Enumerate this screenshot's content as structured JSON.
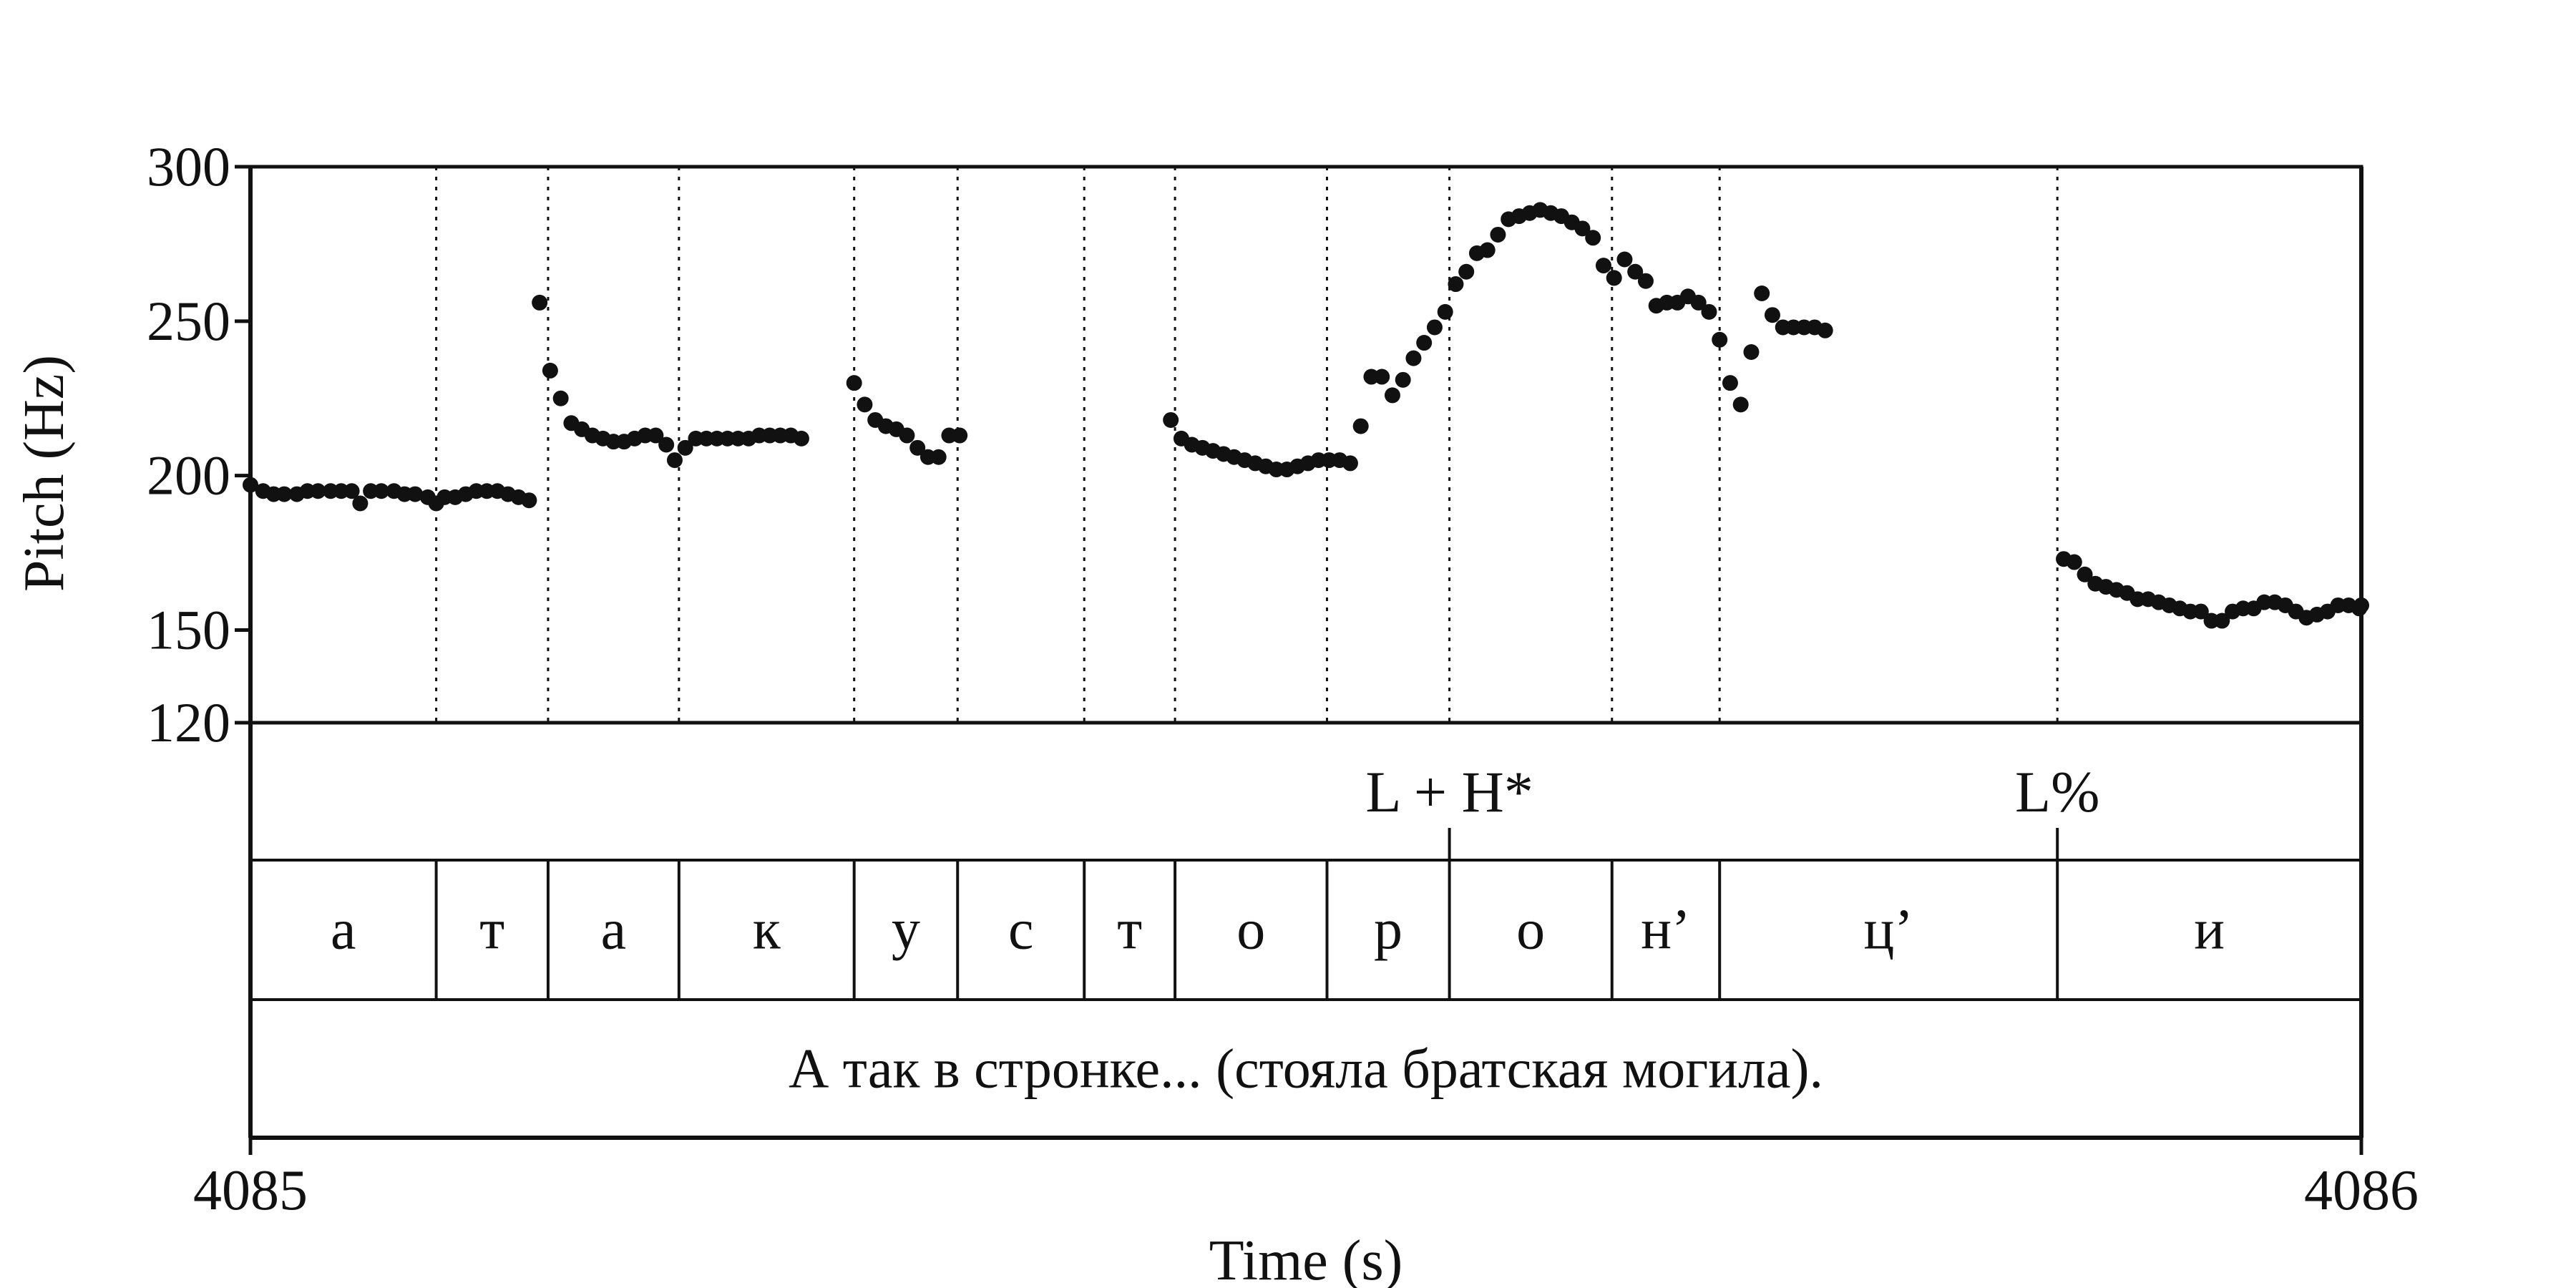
{
  "chart_data": {
    "type": "scatter",
    "title": "",
    "xlabel": "Time (s)",
    "ylabel": "Pitch (Hz)",
    "xlim": [
      4085,
      4086
    ],
    "ylim": [
      120,
      300
    ],
    "xticks": [
      "4085",
      "4086"
    ],
    "yticks": [
      {
        "value": 300,
        "label": "300"
      },
      {
        "value": 250,
        "label": "250"
      },
      {
        "value": 200,
        "label": "200"
      },
      {
        "value": 150,
        "label": "150"
      },
      {
        "value": 120,
        "label": "120"
      }
    ],
    "grid": false,
    "series": [
      {
        "color": "#111111",
        "points": [
          [
            4085.0,
            197
          ],
          [
            4085.006,
            195
          ],
          [
            4085.011,
            194
          ],
          [
            4085.016,
            194
          ],
          [
            4085.022,
            194
          ],
          [
            4085.027,
            195
          ],
          [
            4085.032,
            195
          ],
          [
            4085.038,
            195
          ],
          [
            4085.043,
            195
          ],
          [
            4085.048,
            195
          ],
          [
            4085.052,
            191
          ],
          [
            4085.057,
            195
          ],
          [
            4085.062,
            195
          ],
          [
            4085.068,
            195
          ],
          [
            4085.073,
            194
          ],
          [
            4085.078,
            194
          ],
          [
            4085.084,
            193
          ],
          [
            4085.088,
            191
          ],
          [
            4085.092,
            193
          ],
          [
            4085.097,
            193
          ],
          [
            4085.102,
            194
          ],
          [
            4085.107,
            195
          ],
          [
            4085.112,
            195
          ],
          [
            4085.117,
            195
          ],
          [
            4085.122,
            194
          ],
          [
            4085.127,
            193
          ],
          [
            4085.132,
            192
          ],
          [
            4085.137,
            256
          ],
          [
            4085.142,
            234
          ],
          [
            4085.147,
            225
          ],
          [
            4085.152,
            217
          ],
          [
            4085.157,
            215
          ],
          [
            4085.162,
            213
          ],
          [
            4085.167,
            212
          ],
          [
            4085.172,
            211
          ],
          [
            4085.177,
            211
          ],
          [
            4085.182,
            212
          ],
          [
            4085.187,
            213
          ],
          [
            4085.192,
            213
          ],
          [
            4085.197,
            210
          ],
          [
            4085.201,
            205
          ],
          [
            4085.206,
            209
          ],
          [
            4085.211,
            212
          ],
          [
            4085.216,
            212
          ],
          [
            4085.221,
            212
          ],
          [
            4085.226,
            212
          ],
          [
            4085.231,
            212
          ],
          [
            4085.236,
            212
          ],
          [
            4085.241,
            213
          ],
          [
            4085.246,
            213
          ],
          [
            4085.251,
            213
          ],
          [
            4085.256,
            213
          ],
          [
            4085.261,
            212
          ],
          [
            4085.286,
            230
          ],
          [
            4085.291,
            223
          ],
          [
            4085.296,
            218
          ],
          [
            4085.301,
            216
          ],
          [
            4085.306,
            215
          ],
          [
            4085.311,
            213
          ],
          [
            4085.316,
            209
          ],
          [
            4085.321,
            206
          ],
          [
            4085.326,
            206
          ],
          [
            4085.331,
            213
          ],
          [
            4085.336,
            213
          ],
          [
            4085.436,
            218
          ],
          [
            4085.441,
            212
          ],
          [
            4085.446,
            210
          ],
          [
            4085.451,
            209
          ],
          [
            4085.456,
            208
          ],
          [
            4085.461,
            207
          ],
          [
            4085.466,
            206
          ],
          [
            4085.471,
            205
          ],
          [
            4085.476,
            204
          ],
          [
            4085.481,
            203
          ],
          [
            4085.486,
            202
          ],
          [
            4085.491,
            202
          ],
          [
            4085.496,
            203
          ],
          [
            4085.501,
            204
          ],
          [
            4085.506,
            205
          ],
          [
            4085.511,
            205
          ],
          [
            4085.516,
            205
          ],
          [
            4085.521,
            204
          ],
          [
            4085.526,
            216
          ],
          [
            4085.531,
            232
          ],
          [
            4085.536,
            232
          ],
          [
            4085.541,
            226
          ],
          [
            4085.546,
            231
          ],
          [
            4085.551,
            238
          ],
          [
            4085.556,
            243
          ],
          [
            4085.561,
            248
          ],
          [
            4085.566,
            253
          ],
          [
            4085.571,
            262
          ],
          [
            4085.576,
            266
          ],
          [
            4085.581,
            272
          ],
          [
            4085.586,
            273
          ],
          [
            4085.591,
            278
          ],
          [
            4085.596,
            283
          ],
          [
            4085.601,
            284
          ],
          [
            4085.606,
            285
          ],
          [
            4085.611,
            286
          ],
          [
            4085.616,
            285
          ],
          [
            4085.621,
            284
          ],
          [
            4085.626,
            282
          ],
          [
            4085.631,
            280
          ],
          [
            4085.636,
            277
          ],
          [
            4085.641,
            268
          ],
          [
            4085.646,
            264
          ],
          [
            4085.651,
            270
          ],
          [
            4085.656,
            266
          ],
          [
            4085.661,
            263
          ],
          [
            4085.666,
            255
          ],
          [
            4085.671,
            256
          ],
          [
            4085.676,
            256
          ],
          [
            4085.681,
            258
          ],
          [
            4085.686,
            256
          ],
          [
            4085.691,
            253
          ],
          [
            4085.696,
            244
          ],
          [
            4085.701,
            230
          ],
          [
            4085.706,
            223
          ],
          [
            4085.711,
            240
          ],
          [
            4085.716,
            259
          ],
          [
            4085.721,
            252
          ],
          [
            4085.726,
            248
          ],
          [
            4085.731,
            248
          ],
          [
            4085.736,
            248
          ],
          [
            4085.741,
            248
          ],
          [
            4085.746,
            247
          ],
          [
            4085.859,
            173
          ],
          [
            4085.864,
            172
          ],
          [
            4085.869,
            168
          ],
          [
            4085.874,
            165
          ],
          [
            4085.879,
            164
          ],
          [
            4085.884,
            163
          ],
          [
            4085.889,
            162
          ],
          [
            4085.894,
            160
          ],
          [
            4085.899,
            160
          ],
          [
            4085.904,
            159
          ],
          [
            4085.909,
            158
          ],
          [
            4085.914,
            157
          ],
          [
            4085.919,
            156
          ],
          [
            4085.924,
            156
          ],
          [
            4085.929,
            153
          ],
          [
            4085.934,
            153
          ],
          [
            4085.939,
            156
          ],
          [
            4085.944,
            157
          ],
          [
            4085.949,
            157
          ],
          [
            4085.954,
            159
          ],
          [
            4085.959,
            159
          ],
          [
            4085.964,
            158
          ],
          [
            4085.969,
            156
          ],
          [
            4085.974,
            154
          ],
          [
            4085.979,
            155
          ],
          [
            4085.984,
            156
          ],
          [
            4085.989,
            158
          ],
          [
            4085.994,
            158
          ],
          [
            4085.999,
            157
          ],
          [
            4086.0,
            158
          ]
        ]
      }
    ],
    "tones_tier": {
      "boundaries": [
        4085.568,
        4085.856
      ],
      "labels": [
        {
          "x": 4085.568,
          "text": "L + H*"
        },
        {
          "x": 4085.856,
          "text": "L%"
        }
      ]
    },
    "segments_tier": {
      "boundaries": [
        4085,
        4085.088,
        4085.141,
        4085.203,
        4085.286,
        4085.335,
        4085.395,
        4085.438,
        4085.51,
        4085.568,
        4085.645,
        4085.696,
        4085.856,
        4086
      ],
      "labels": [
        "а",
        "т",
        "а",
        "к",
        "у",
        "с",
        "т",
        "о",
        "р",
        "о",
        "н’",
        "ц’",
        "и"
      ]
    },
    "words_tier": {
      "text": "А так в стронке... (стояла братская могила)."
    }
  }
}
